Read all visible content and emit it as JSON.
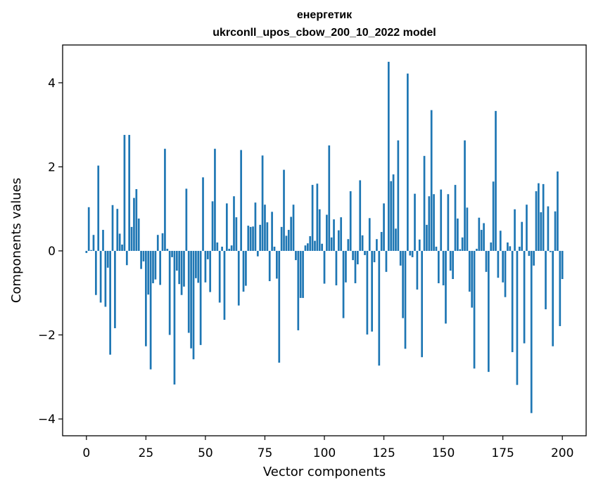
{
  "chart_data": {
    "type": "bar",
    "title": "енергетик",
    "subtitle": "ukrconll_upos_cbow_200_10_2022 model",
    "xlabel": "Vector components",
    "ylabel": "Components values",
    "xlim": [
      -10,
      210
    ],
    "ylim": [
      -4.4,
      4.9
    ],
    "xticks": [
      0,
      25,
      50,
      75,
      100,
      125,
      150,
      175,
      200
    ],
    "xtick_labels": [
      "0",
      "25",
      "50",
      "75",
      "100",
      "125",
      "150",
      "175",
      "200"
    ],
    "yticks": [
      -4,
      -2,
      0,
      2,
      4
    ],
    "ytick_labels": [
      "−4",
      "−2",
      "0",
      "2",
      "4"
    ],
    "bar_color": "#1f77b4",
    "values": [
      -0.05,
      1.04,
      0.02,
      0.38,
      -1.05,
      2.03,
      -1.23,
      0.5,
      -1.33,
      -0.4,
      -2.47,
      1.09,
      -1.84,
      1.0,
      0.41,
      0.15,
      2.76,
      -0.34,
      2.76,
      0.57,
      1.26,
      1.47,
      0.77,
      -0.43,
      -0.25,
      -2.27,
      -1.04,
      -2.82,
      -0.77,
      -0.68,
      0.38,
      -0.81,
      0.42,
      2.43,
      0.05,
      -2.0,
      -0.15,
      -3.18,
      -0.47,
      -0.79,
      -1.05,
      -0.85,
      1.48,
      -1.95,
      -2.32,
      -2.58,
      -0.65,
      -0.76,
      -2.24,
      1.75,
      -0.75,
      -0.2,
      -0.98,
      1.18,
      2.43,
      0.2,
      -1.23,
      0.1,
      -1.64,
      1.13,
      0.05,
      0.13,
      1.3,
      0.8,
      -1.3,
      2.4,
      -0.97,
      -0.83,
      0.6,
      0.57,
      0.58,
      1.15,
      -0.13,
      0.62,
      2.27,
      1.1,
      0.68,
      -0.72,
      0.93,
      0.1,
      -0.66,
      -2.66,
      0.57,
      1.93,
      0.36,
      0.5,
      0.81,
      1.1,
      -0.22,
      -1.89,
      -1.12,
      -1.12,
      0.13,
      0.18,
      0.35,
      1.57,
      0.24,
      1.6,
      0.99,
      0.17,
      -0.78,
      0.86,
      2.51,
      0.32,
      0.75,
      -0.82,
      0.49,
      0.8,
      -1.6,
      -0.75,
      0.28,
      1.42,
      -0.22,
      -0.77,
      -0.32,
      1.68,
      0.37,
      -0.1,
      -1.99,
      0.78,
      -1.92,
      -0.27,
      0.28,
      -2.73,
      0.45,
      1.13,
      -0.5,
      4.5,
      1.66,
      1.82,
      0.53,
      2.63,
      -0.35,
      -1.6,
      -2.33,
      4.22,
      -0.11,
      -0.15,
      1.36,
      -0.92,
      0.27,
      -2.53,
      2.26,
      0.62,
      1.3,
      3.35,
      1.35,
      0.1,
      -0.77,
      1.46,
      -0.82,
      -1.73,
      1.35,
      -0.47,
      -0.67,
      1.57,
      0.77,
      0.04,
      0.32,
      2.63,
      1.03,
      -0.97,
      -1.35,
      -2.8,
      0.05,
      0.79,
      0.5,
      0.66,
      -0.5,
      -2.88,
      0.2,
      1.65,
      3.33,
      -0.64,
      0.48,
      -0.75,
      -1.1,
      0.2,
      0.11,
      -2.41,
      0.99,
      -3.19,
      0.1,
      0.69,
      -2.2,
      1.1,
      -0.12,
      -3.86,
      -0.35,
      1.42,
      1.61,
      0.92,
      1.59,
      -1.39,
      1.06,
      -0.03,
      -2.27,
      0.94,
      1.89,
      -1.79,
      -0.67
    ]
  }
}
